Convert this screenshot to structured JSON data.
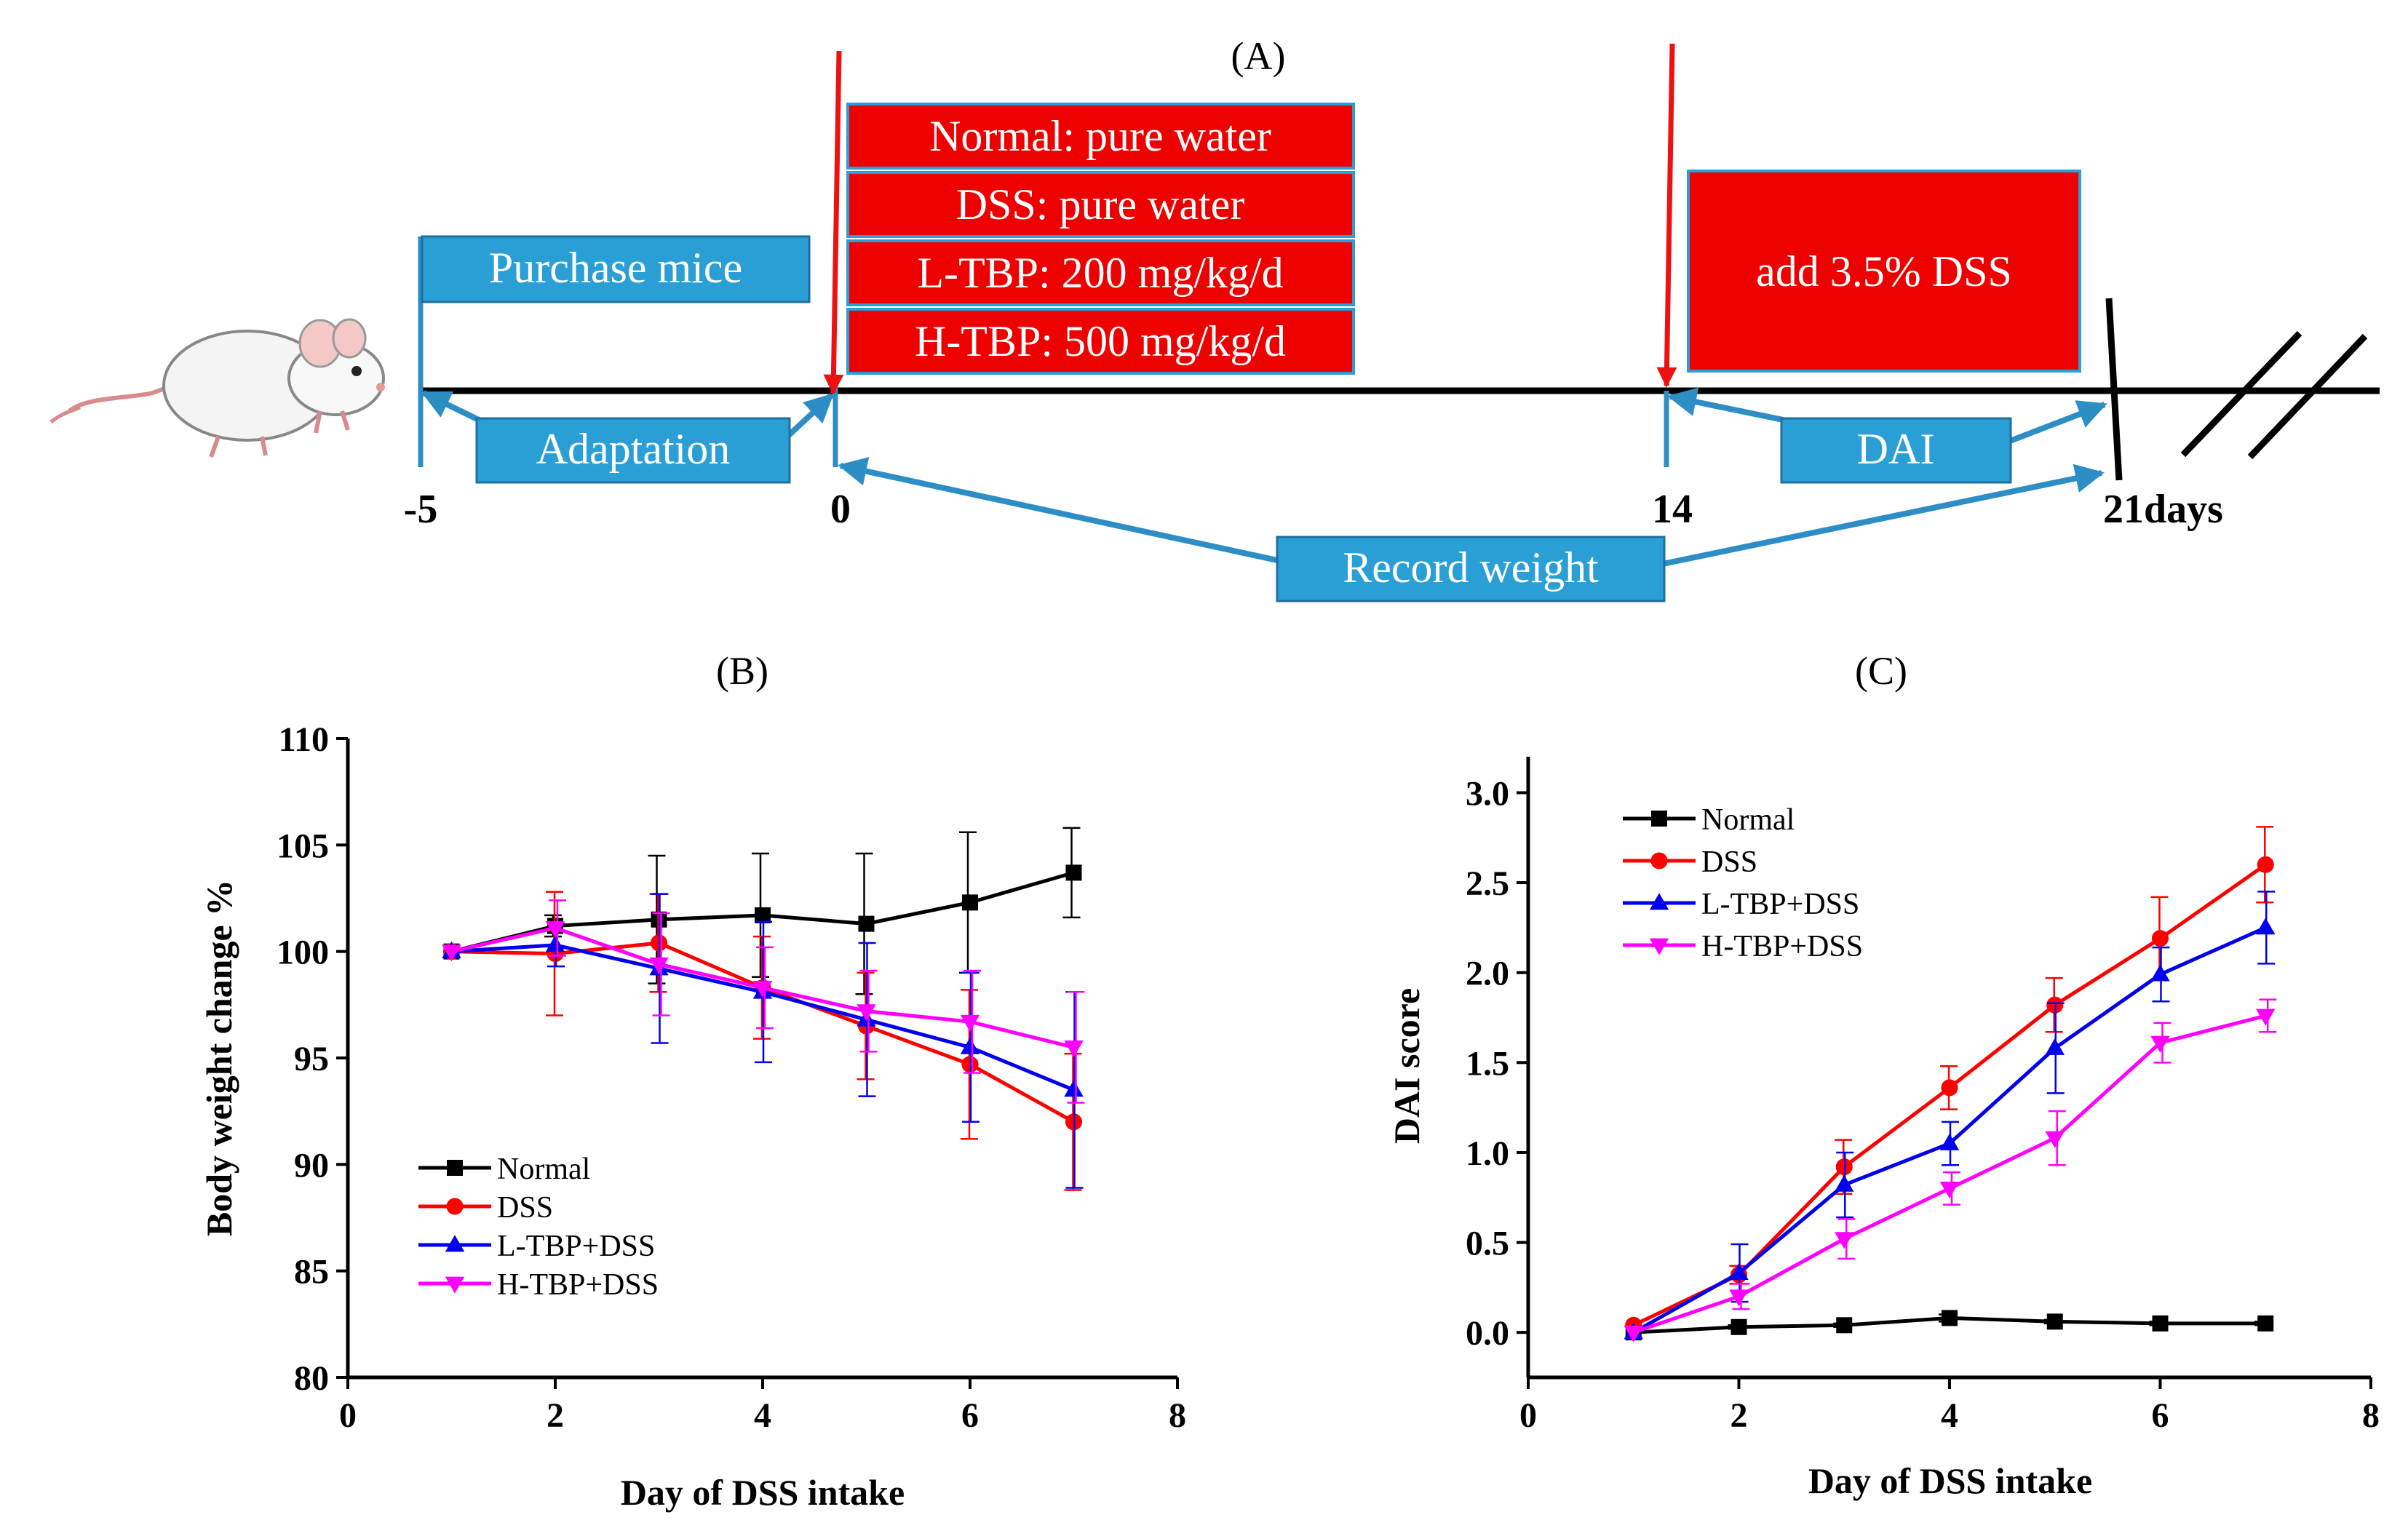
{
  "panel_a": {
    "label": "(A)",
    "boxes": {
      "purchase": "Purchase mice",
      "adaptation": "Adaptation",
      "dai": "DAI",
      "record": "Record weight",
      "add_dss": "add 3.5% DSS",
      "groups": [
        "Normal: pure water",
        "DSS: pure water",
        "L-TBP: 200 mg/kg/d",
        "H-TBP: 500 mg/kg/d"
      ]
    },
    "timeline": {
      "t_start": "-5",
      "t_zero": "0",
      "t_mid": "14",
      "t_end": "21days"
    }
  },
  "colors": {
    "blue_box": "#2a9fd6",
    "blue_arrow": "#2d8ec6",
    "red_box": "#ee0000",
    "red_arrow": "#ee1111"
  },
  "chart_data": [
    {
      "panel_label": "(B)",
      "type": "line",
      "xlabel": "Day of DSS intake",
      "ylabel": "Body weight change %",
      "xlim": [
        0,
        8
      ],
      "ylim": [
        80,
        110
      ],
      "xticks": [
        0,
        2,
        4,
        6,
        8
      ],
      "yticks": [
        80,
        85,
        90,
        95,
        100,
        105,
        110
      ],
      "x": [
        1,
        2,
        3,
        4,
        5,
        6,
        7
      ],
      "legend_position": "lower-left",
      "series": [
        {
          "name": "Normal",
          "color": "#000000",
          "marker": "square",
          "values": [
            100,
            101.2,
            101.5,
            101.7,
            101.3,
            102.3,
            103.7
          ],
          "errors": [
            0,
            0.5,
            3.0,
            2.9,
            3.3,
            3.3,
            2.1
          ]
        },
        {
          "name": "DSS",
          "color": "#ff0000",
          "marker": "circle",
          "values": [
            100,
            99.9,
            100.4,
            98.3,
            96.5,
            94.7,
            92.0
          ],
          "errors": [
            0,
            2.9,
            2.3,
            2.4,
            2.5,
            3.5,
            3.2
          ]
        },
        {
          "name": "L-TBP+DSS",
          "color": "#0000ee",
          "marker": "triangle-up",
          "values": [
            100,
            100.3,
            99.2,
            98.1,
            96.8,
            95.5,
            93.5
          ],
          "errors": [
            0,
            1.0,
            3.5,
            3.3,
            3.6,
            3.5,
            4.6
          ]
        },
        {
          "name": "H-TBP+DSS",
          "color": "#ff00ff",
          "marker": "triangle-down",
          "values": [
            100,
            101.1,
            99.4,
            98.3,
            97.2,
            96.7,
            95.5
          ],
          "errors": [
            0,
            1.3,
            2.4,
            1.9,
            1.9,
            2.4,
            2.6
          ]
        }
      ]
    },
    {
      "panel_label": "(C)",
      "type": "line",
      "xlabel": "Day of DSS intake",
      "ylabel": "DAI score",
      "xlim": [
        0,
        8
      ],
      "ylim": [
        -0.25,
        3.2
      ],
      "xticks": [
        0,
        2,
        4,
        6,
        8
      ],
      "yticks": [
        0.0,
        0.5,
        1.0,
        1.5,
        2.0,
        2.5,
        3.0
      ],
      "x": [
        1,
        2,
        3,
        4,
        5,
        6,
        7
      ],
      "legend_position": "top-left",
      "series": [
        {
          "name": "Normal",
          "color": "#000000",
          "marker": "square",
          "values": [
            0.0,
            0.03,
            0.04,
            0.08,
            0.06,
            0.05,
            0.05
          ],
          "errors": [
            0,
            0.01,
            0.01,
            0.02,
            0.01,
            0.01,
            0.01
          ]
        },
        {
          "name": "DSS",
          "color": "#ff0000",
          "marker": "circle",
          "values": [
            0.04,
            0.32,
            0.92,
            1.36,
            1.82,
            2.19,
            2.6
          ],
          "errors": [
            0,
            0.05,
            0.15,
            0.12,
            0.15,
            0.23,
            0.21
          ]
        },
        {
          "name": "L-TBP+DSS",
          "color": "#0000ee",
          "marker": "triangle-up",
          "values": [
            0.0,
            0.33,
            0.82,
            1.05,
            1.58,
            1.99,
            2.25
          ],
          "errors": [
            0,
            0.16,
            0.18,
            0.12,
            0.25,
            0.15,
            0.2
          ]
        },
        {
          "name": "H-TBP+DSS",
          "color": "#ff00ff",
          "marker": "triangle-down",
          "values": [
            0.0,
            0.2,
            0.52,
            0.8,
            1.08,
            1.61,
            1.76
          ],
          "errors": [
            0,
            0.07,
            0.11,
            0.09,
            0.15,
            0.11,
            0.09
          ]
        }
      ]
    }
  ]
}
